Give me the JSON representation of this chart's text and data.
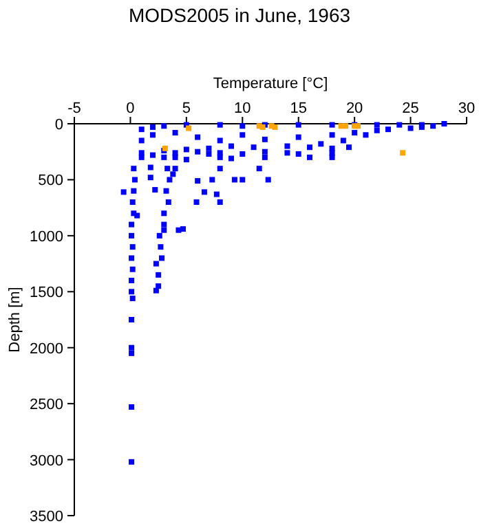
{
  "chart_data": {
    "type": "scatter",
    "title": "MODS2005 in June, 1963",
    "xlabel": "Temperature [°C]",
    "ylabel": "Depth [m]",
    "xlim": [
      -5,
      30
    ],
    "xticks": [
      -5,
      0,
      5,
      10,
      15,
      20,
      25,
      30
    ],
    "ylim": [
      3500,
      0
    ],
    "yticks": [
      0,
      500,
      1000,
      1500,
      2000,
      2500,
      3000,
      3500
    ],
    "grid": false,
    "marker": "square",
    "series": [
      {
        "color": "#0000ff",
        "x": [
          1,
          2,
          3,
          5,
          8,
          10,
          12,
          15,
          18,
          20,
          22,
          24,
          26,
          28,
          27,
          25,
          22,
          20,
          18,
          15,
          12,
          10,
          8,
          6,
          4,
          2,
          1,
          26,
          23,
          21,
          19,
          17,
          14,
          11,
          9,
          7,
          5,
          3,
          1,
          1,
          2,
          4,
          6,
          8,
          10,
          12,
          14,
          16,
          18,
          19.5,
          15,
          16,
          18,
          18,
          12,
          9,
          8,
          11.5,
          8,
          7,
          4,
          5,
          3,
          6,
          7.3,
          9.3,
          10,
          12.3,
          7.7,
          6.6,
          5.9,
          8,
          4.7,
          4.3,
          1.8,
          2.2,
          1.8,
          -0.6,
          0.3,
          0.4,
          0.3,
          0.2,
          0.3,
          0.6,
          0.1,
          0.1,
          0.2,
          0.1,
          0.2,
          0.1,
          0.1,
          0.2,
          0.1,
          0.1,
          0.1,
          0.1,
          0.1,
          3.3,
          3.5,
          3.2,
          3.4,
          3,
          3,
          3,
          2.6,
          2.7,
          2.8,
          2.3,
          2.5,
          2.5,
          2.3,
          4,
          3.8
        ],
        "values": [
          50,
          30,
          20,
          10,
          10,
          20,
          10,
          10,
          10,
          10,
          10,
          10,
          10,
          0,
          20,
          40,
          60,
          80,
          100,
          120,
          140,
          100,
          150,
          120,
          80,
          100,
          150,
          30,
          50,
          100,
          150,
          180,
          200,
          210,
          200,
          220,
          230,
          240,
          260,
          300,
          280,
          260,
          250,
          260,
          270,
          250,
          260,
          210,
          220,
          210,
          270,
          300,
          300,
          260,
          300,
          310,
          300,
          400,
          400,
          270,
          300,
          320,
          300,
          510,
          500,
          500,
          500,
          500,
          630,
          610,
          700,
          700,
          940,
          950,
          390,
          590,
          480,
          610,
          400,
          500,
          600,
          700,
          800,
          820,
          900,
          1000,
          1100,
          1200,
          1300,
          1400,
          1500,
          1560,
          1750,
          2000,
          2050,
          2530,
          3020,
          400,
          500,
          600,
          700,
          800,
          900,
          950,
          1000,
          1100,
          1200,
          1250,
          1350,
          1450,
          1490,
          400,
          450
        ]
      },
      {
        "color": "#ffa500",
        "x": [
          5.2,
          11.5,
          11.8,
          12.6,
          12.9,
          18.8,
          19.2,
          20,
          20.3,
          3.1,
          24.3
        ],
        "values": [
          40,
          20,
          30,
          20,
          30,
          20,
          20,
          20,
          20,
          220,
          260
        ]
      }
    ]
  }
}
